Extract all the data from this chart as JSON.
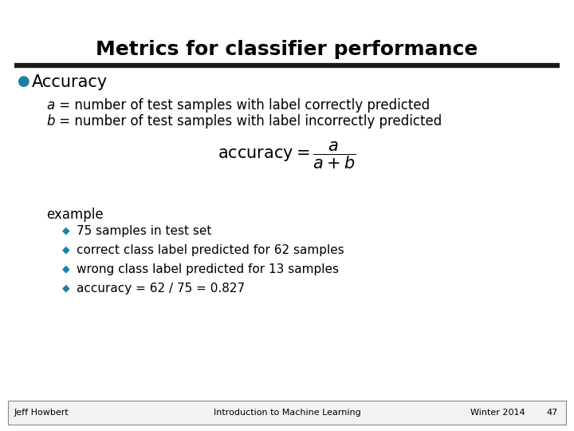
{
  "title": "Metrics for classifier performance",
  "title_fontsize": 18,
  "title_fontweight": "bold",
  "background_color": "#ffffff",
  "bullet_color": "#1a7fa0",
  "diamond_color": "#1a7fa0",
  "text_color": "#000000",
  "line_color": "#1a1a1a",
  "accuracy_bullet": "Accuracy",
  "line1_pre": "a",
  "line1_post": " = number of test samples with label correctly predicted",
  "line2_pre": "b",
  "line2_post": " = number of test samples with label incorrectly predicted",
  "example_label": "example",
  "sub_bullets": [
    "75 samples in test set",
    "correct class label predicted for 62 samples",
    "wrong class label predicted for 13 samples",
    "accuracy = 62 / 75 = 0.827"
  ],
  "footer_left": "Jeff Howbert",
  "footer_center": "Introduction to Machine Learning",
  "footer_right": "Winter 2014",
  "footer_page": "47",
  "footer_fontsize": 8,
  "body_fontsize": 12,
  "accuracy_fontsize": 15,
  "formula_fontsize": 13,
  "example_fontsize": 12,
  "sub_fontsize": 11
}
